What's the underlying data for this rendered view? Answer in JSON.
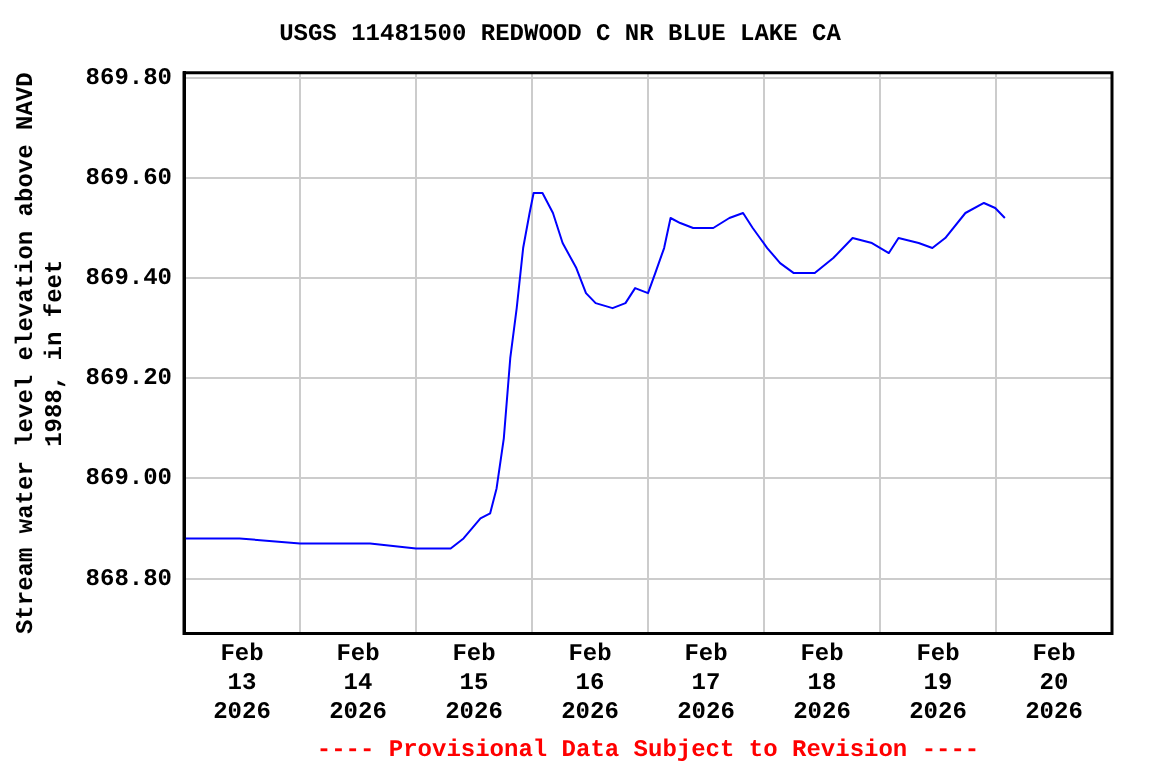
{
  "chart_data": {
    "type": "line",
    "title": "USGS 11481500 REDWOOD C NR BLUE LAKE CA",
    "ylabel": "Stream water level elevation above NAVD 1988, in feet",
    "annotations": [
      "---- Provisional Data Subject to Revision ----"
    ],
    "xlim": [
      "2026-02-13",
      "2026-02-21"
    ],
    "xticks": [
      {
        "value": "2026-02-13T12:00",
        "label": "Feb 13 2026"
      },
      {
        "value": "2026-02-14",
        "label": null
      },
      {
        "value": "2026-02-14T12:00",
        "label": "Feb 14 2026"
      },
      {
        "value": "2026-02-15",
        "label": null
      },
      {
        "value": "2026-02-15T12:00",
        "label": "Feb 15 2026"
      },
      {
        "value": "2026-02-16",
        "label": null
      },
      {
        "value": "2026-02-16T12:00",
        "label": "Feb 16 2026"
      },
      {
        "value": "2026-02-17",
        "label": null
      },
      {
        "value": "2026-02-17T12:00",
        "label": "Feb 17 2026"
      },
      {
        "value": "2026-02-18",
        "label": null
      },
      {
        "value": "2026-02-18T12:00",
        "label": "Feb 18 2026"
      },
      {
        "value": "2026-02-19",
        "label": null
      },
      {
        "value": "2026-02-19T12:00",
        "label": "Feb 19 2026"
      },
      {
        "value": "2026-02-20",
        "label": null
      },
      {
        "value": "2026-02-20T12:00",
        "label": "Feb 20 2026"
      }
    ],
    "ylim": [
      868.69,
      869.81
    ],
    "yticks": [
      {
        "value": 868.8,
        "label": "868.80"
      },
      {
        "value": 869.0,
        "label": "869.00"
      },
      {
        "value": 869.2,
        "label": "869.20"
      },
      {
        "value": 869.4,
        "label": "869.40"
      },
      {
        "value": 869.6,
        "label": "869.60"
      },
      {
        "value": 869.8,
        "label": "869.80"
      }
    ],
    "grid": true,
    "legend": false,
    "marker": "none",
    "line_style": "solid",
    "series": [
      {
        "color": "#0000ff",
        "x": [
          "2026-02-13T00:20",
          "2026-02-13T11:30",
          "2026-02-14T00:00",
          "2026-02-14T14:30",
          "2026-02-15T00:00",
          "2026-02-15T07:10",
          "2026-02-15T09:50",
          "2026-02-15T13:20",
          "2026-02-15T15:20",
          "2026-02-15T16:40",
          "2026-02-15T18:10",
          "2026-02-15T19:30",
          "2026-02-15T20:50",
          "2026-02-15T22:10",
          "2026-02-15T23:30",
          "2026-02-16T00:20",
          "2026-02-16T02:10",
          "2026-02-16T04:20",
          "2026-02-16T06:20",
          "2026-02-16T09:10",
          "2026-02-16T11:10",
          "2026-02-16T13:10",
          "2026-02-16T16:40",
          "2026-02-16T19:20",
          "2026-02-16T21:20",
          "2026-02-17T00:00",
          "2026-02-17T01:30",
          "2026-02-17T03:20",
          "2026-02-17T04:40",
          "2026-02-17T06:40",
          "2026-02-17T09:20",
          "2026-02-17T13:30",
          "2026-02-17T16:50",
          "2026-02-17T19:40",
          "2026-02-17T21:40",
          "2026-02-18T00:40",
          "2026-02-18T03:20",
          "2026-02-18T06:10",
          "2026-02-18T10:30",
          "2026-02-18T14:20",
          "2026-02-18T18:20",
          "2026-02-18T22:20",
          "2026-02-19T01:50",
          "2026-02-19T03:50",
          "2026-02-19T08:00",
          "2026-02-19T10:50",
          "2026-02-19T13:30",
          "2026-02-19T17:40",
          "2026-02-19T21:30",
          "2026-02-19T23:50",
          "2026-02-20T01:50"
        ],
        "values": [
          868.88,
          868.88,
          868.87,
          868.87,
          868.86,
          868.86,
          868.88,
          868.92,
          868.93,
          868.98,
          869.08,
          869.24,
          869.34,
          869.46,
          869.53,
          869.57,
          869.57,
          869.53,
          869.47,
          869.42,
          869.37,
          869.35,
          869.34,
          869.35,
          869.38,
          869.37,
          869.41,
          869.46,
          869.52,
          869.51,
          869.5,
          869.5,
          869.52,
          869.53,
          869.5,
          869.46,
          869.43,
          869.41,
          869.41,
          869.44,
          869.48,
          869.47,
          869.45,
          869.48,
          869.47,
          869.46,
          869.48,
          869.53,
          869.55,
          869.54,
          869.52
        ]
      }
    ]
  }
}
